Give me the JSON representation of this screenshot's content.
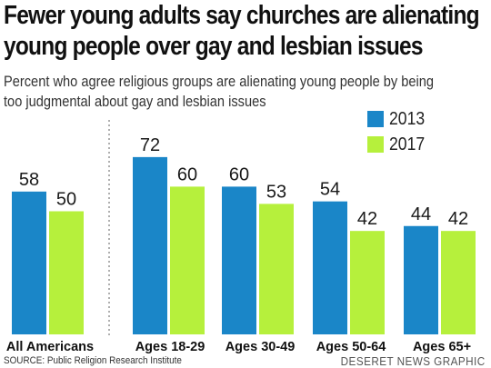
{
  "header": {
    "title_line1": "Fewer young adults say churches are alienating",
    "title_line2": "young people over gay and lesbian issues",
    "subtitle_line1": "Percent who agree religious groups are alienating young people by being",
    "subtitle_line2": "too judgmental about gay and lesbian issues"
  },
  "footer": {
    "source": "SOURCE: Public Religion Research Institute",
    "credit": "DESERET NEWS GRAPHIC"
  },
  "colors": {
    "series_2013": "#1a86c8",
    "series_2017": "#b6f03c",
    "divider": "#7a7a7a"
  },
  "chart_data": {
    "type": "bar",
    "title": "Fewer young adults say churches are alienating young people over gay and lesbian issues",
    "subtitle": "Percent who agree religious groups are alienating young people by being too judgmental about gay and lesbian issues",
    "categories": [
      "All Americans",
      "Ages 18-29",
      "Ages 30-49",
      "Ages 50-64",
      "Ages 65+"
    ],
    "series": [
      {
        "name": "2013",
        "values": [
          58,
          72,
          60,
          54,
          44
        ]
      },
      {
        "name": "2017",
        "values": [
          50,
          60,
          53,
          42,
          42
        ]
      }
    ],
    "ylim": [
      0,
      100
    ],
    "grid": false,
    "legend": "top-right",
    "data_labels": true,
    "xlabel": "",
    "ylabel": ""
  }
}
